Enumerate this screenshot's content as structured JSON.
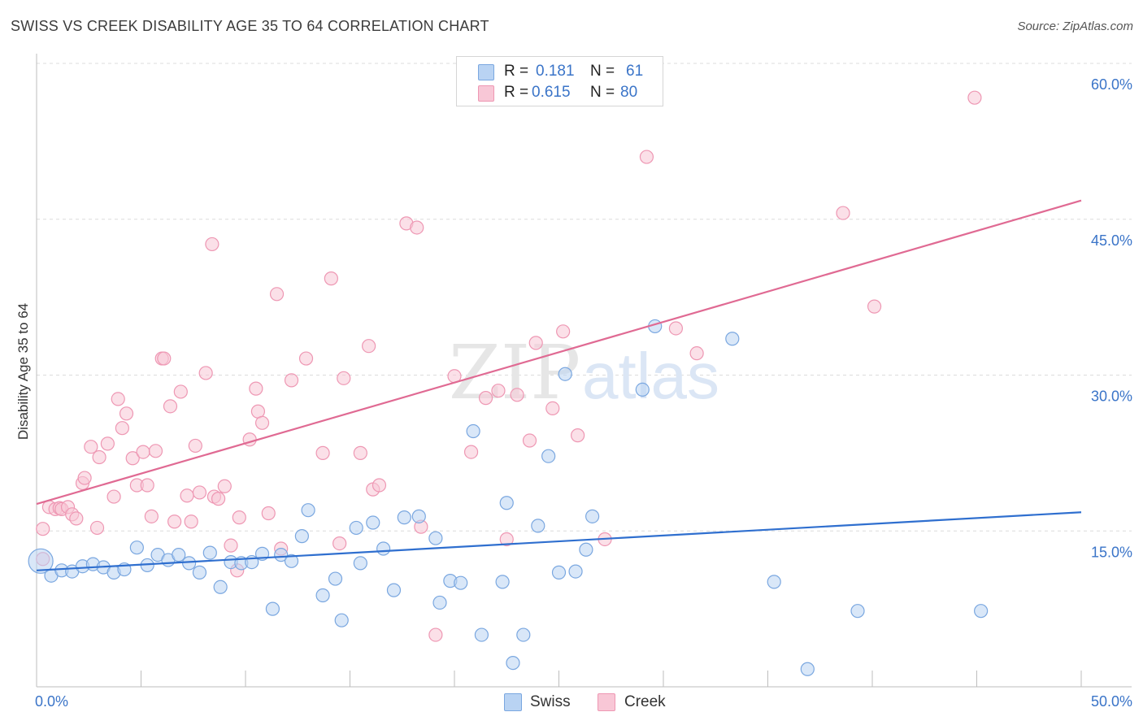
{
  "title": "SWISS VS CREEK DISABILITY AGE 35 TO 64 CORRELATION CHART",
  "source": "Source: ZipAtlas.com",
  "watermark": {
    "zip": "ZIP",
    "atlas": "atlas"
  },
  "colors": {
    "swiss_fill": "#b9d3f3",
    "swiss_stroke": "#7aa7e0",
    "swiss_line": "#2f6fcf",
    "creek_fill": "#f8c7d6",
    "creek_stroke": "#ee97b3",
    "creek_line": "#e06a93",
    "value_text": "#3a74c8",
    "grid": "#dcdcdc"
  },
  "legend": {
    "rows": [
      {
        "series": "Swiss",
        "r_label": "R =",
        "r_value": "0.181",
        "n_label": "N =",
        "n_value": "61"
      },
      {
        "series": "Creek",
        "r_label": "R =",
        "r_value": "0.615",
        "n_label": "N =",
        "n_value": "80"
      }
    ],
    "bottom": [
      {
        "label": "Swiss"
      },
      {
        "label": "Creek"
      }
    ]
  },
  "chart_data": {
    "type": "scatter",
    "title": "SWISS VS CREEK DISABILITY AGE 35 TO 64 CORRELATION CHART",
    "xlabel": "",
    "ylabel": "Disability Age 35 to 64",
    "xlim": [
      0,
      50
    ],
    "ylim": [
      0,
      60
    ],
    "x_tick_labels": [
      {
        "value": 0,
        "label": "0.0%"
      },
      {
        "value": 50,
        "label": "50.0%"
      }
    ],
    "x_minor_ticks": [
      0,
      5,
      10,
      15,
      20,
      25,
      30,
      35,
      40,
      45,
      50
    ],
    "y_ticks": [
      {
        "value": 15,
        "label": "15.0%"
      },
      {
        "value": 30,
        "label": "30.0%"
      },
      {
        "value": 45,
        "label": "45.0%"
      },
      {
        "value": 60,
        "label": "60.0%"
      }
    ],
    "grid": true,
    "series": [
      {
        "name": "Swiss",
        "trend": {
          "x": [
            0,
            50
          ],
          "y": [
            11.2,
            16.8
          ]
        },
        "points": [
          [
            0.2,
            12.1
          ],
          [
            0.7,
            10.7
          ],
          [
            1.2,
            11.2
          ],
          [
            1.7,
            11.1
          ],
          [
            2.2,
            11.6
          ],
          [
            2.7,
            11.8
          ],
          [
            3.2,
            11.5
          ],
          [
            3.7,
            11.0
          ],
          [
            4.2,
            11.3
          ],
          [
            4.8,
            13.4
          ],
          [
            5.3,
            11.7
          ],
          [
            5.8,
            12.7
          ],
          [
            6.3,
            12.2
          ],
          [
            6.8,
            12.7
          ],
          [
            7.3,
            11.9
          ],
          [
            7.8,
            11.0
          ],
          [
            8.3,
            12.9
          ],
          [
            8.8,
            9.6
          ],
          [
            9.3,
            12.0
          ],
          [
            9.8,
            11.9
          ],
          [
            10.3,
            12.0
          ],
          [
            10.8,
            12.8
          ],
          [
            11.3,
            7.5
          ],
          [
            11.7,
            12.7
          ],
          [
            12.2,
            12.1
          ],
          [
            12.7,
            14.5
          ],
          [
            13.0,
            17.0
          ],
          [
            13.7,
            8.8
          ],
          [
            14.3,
            10.4
          ],
          [
            14.6,
            6.4
          ],
          [
            15.3,
            15.3
          ],
          [
            15.5,
            11.9
          ],
          [
            16.1,
            15.8
          ],
          [
            16.6,
            13.3
          ],
          [
            17.1,
            9.3
          ],
          [
            17.6,
            16.3
          ],
          [
            18.3,
            16.4
          ],
          [
            19.1,
            14.3
          ],
          [
            19.3,
            8.1
          ],
          [
            19.8,
            10.2
          ],
          [
            20.3,
            10.0
          ],
          [
            20.9,
            24.6
          ],
          [
            21.3,
            5.0
          ],
          [
            22.3,
            10.1
          ],
          [
            22.5,
            17.7
          ],
          [
            22.8,
            2.3
          ],
          [
            23.3,
            5.0
          ],
          [
            24.0,
            15.5
          ],
          [
            24.5,
            22.2
          ],
          [
            25.0,
            11.0
          ],
          [
            25.3,
            30.1
          ],
          [
            25.8,
            11.1
          ],
          [
            26.3,
            13.2
          ],
          [
            26.6,
            16.4
          ],
          [
            29.0,
            28.6
          ],
          [
            29.6,
            34.7
          ],
          [
            33.3,
            33.5
          ],
          [
            35.3,
            10.1
          ],
          [
            36.9,
            1.7
          ],
          [
            39.3,
            7.3
          ],
          [
            45.2,
            7.3
          ]
        ]
      },
      {
        "name": "Creek",
        "trend": {
          "x": [
            0,
            50
          ],
          "y": [
            17.6,
            46.8
          ]
        },
        "points": [
          [
            0.3,
            15.2
          ],
          [
            0.3,
            12.3
          ],
          [
            0.6,
            17.3
          ],
          [
            0.9,
            17.1
          ],
          [
            1.1,
            17.2
          ],
          [
            1.2,
            17.1
          ],
          [
            1.5,
            17.3
          ],
          [
            1.7,
            16.6
          ],
          [
            1.9,
            16.2
          ],
          [
            2.2,
            19.6
          ],
          [
            2.3,
            20.1
          ],
          [
            2.6,
            23.1
          ],
          [
            2.9,
            15.3
          ],
          [
            3.0,
            22.1
          ],
          [
            3.4,
            23.4
          ],
          [
            3.7,
            18.3
          ],
          [
            3.9,
            27.7
          ],
          [
            4.1,
            24.9
          ],
          [
            4.3,
            26.3
          ],
          [
            4.6,
            22.0
          ],
          [
            4.8,
            19.4
          ],
          [
            5.1,
            22.6
          ],
          [
            5.3,
            19.4
          ],
          [
            5.5,
            16.4
          ],
          [
            5.7,
            22.7
          ],
          [
            6.0,
            31.6
          ],
          [
            6.1,
            31.6
          ],
          [
            6.4,
            27.0
          ],
          [
            6.6,
            15.9
          ],
          [
            6.9,
            28.4
          ],
          [
            7.2,
            18.4
          ],
          [
            7.4,
            15.9
          ],
          [
            7.6,
            23.2
          ],
          [
            7.8,
            18.7
          ],
          [
            8.1,
            30.2
          ],
          [
            8.4,
            42.6
          ],
          [
            8.5,
            18.3
          ],
          [
            8.7,
            18.1
          ],
          [
            9.0,
            19.3
          ],
          [
            9.3,
            13.6
          ],
          [
            9.6,
            11.2
          ],
          [
            9.7,
            16.3
          ],
          [
            10.2,
            23.8
          ],
          [
            10.5,
            28.7
          ],
          [
            10.6,
            26.5
          ],
          [
            10.8,
            25.4
          ],
          [
            11.1,
            16.7
          ],
          [
            11.5,
            37.8
          ],
          [
            11.7,
            13.3
          ],
          [
            12.2,
            29.5
          ],
          [
            12.9,
            31.6
          ],
          [
            13.7,
            22.5
          ],
          [
            14.1,
            39.3
          ],
          [
            14.5,
            13.8
          ],
          [
            14.7,
            29.7
          ],
          [
            15.5,
            22.5
          ],
          [
            15.9,
            32.8
          ],
          [
            16.1,
            19.0
          ],
          [
            16.4,
            19.4
          ],
          [
            17.7,
            44.6
          ],
          [
            18.2,
            44.2
          ],
          [
            18.4,
            15.4
          ],
          [
            19.1,
            5.0
          ],
          [
            20.0,
            29.9
          ],
          [
            20.8,
            22.6
          ],
          [
            21.5,
            27.8
          ],
          [
            22.1,
            28.5
          ],
          [
            22.5,
            14.2
          ],
          [
            23.0,
            28.1
          ],
          [
            23.6,
            23.7
          ],
          [
            23.9,
            33.1
          ],
          [
            24.7,
            26.8
          ],
          [
            25.2,
            34.2
          ],
          [
            25.9,
            24.2
          ],
          [
            27.2,
            14.2
          ],
          [
            29.2,
            51.0
          ],
          [
            30.6,
            34.5
          ],
          [
            31.6,
            32.1
          ],
          [
            38.6,
            45.6
          ],
          [
            40.1,
            36.6
          ],
          [
            44.9,
            56.7
          ]
        ]
      }
    ]
  }
}
